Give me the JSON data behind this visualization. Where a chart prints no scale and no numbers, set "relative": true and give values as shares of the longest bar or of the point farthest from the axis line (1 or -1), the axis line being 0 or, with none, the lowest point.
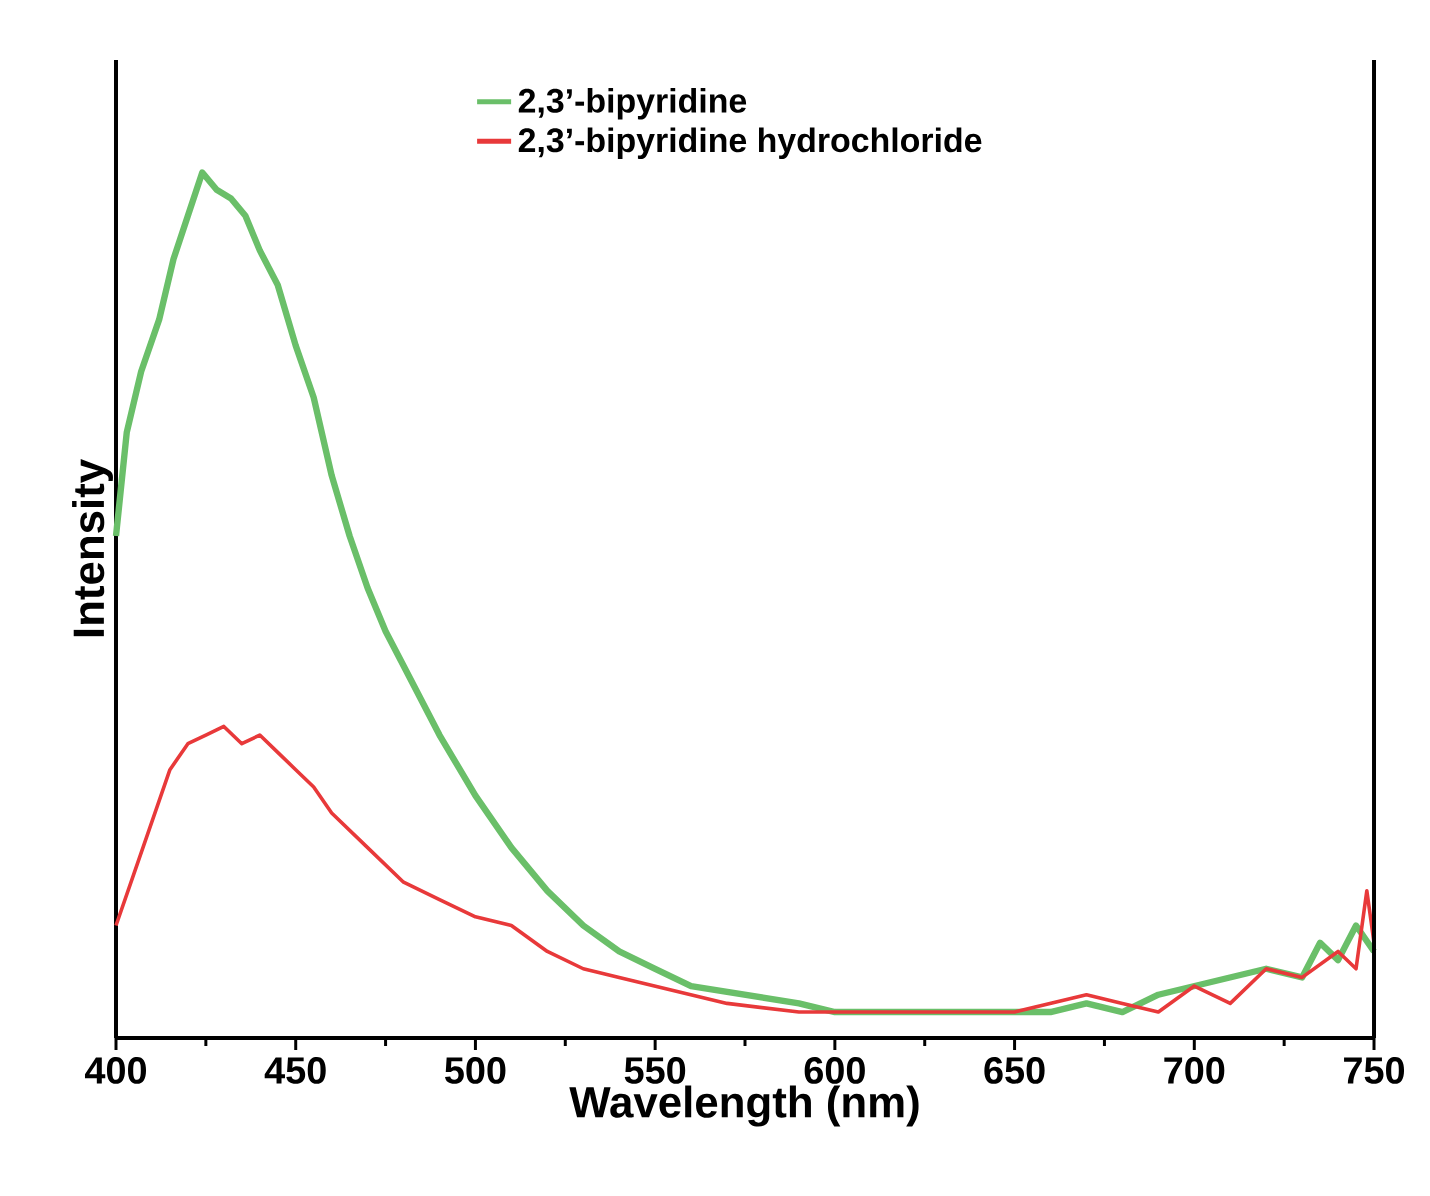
{
  "chart_data": {
    "type": "line",
    "xlabel": "Wavelength (nm)",
    "ylabel": "Intensity",
    "relative": true,
    "xlim": [
      400,
      750
    ],
    "xticks": [
      400,
      450,
      500,
      550,
      600,
      650,
      700,
      750
    ],
    "legend": "top",
    "line_style": "solid",
    "marker": "none",
    "grid": false,
    "series": [
      {
        "name": "2,3’-bipyridine",
        "color": "#6abf69",
        "x": [
          400,
          403,
          407,
          412,
          416,
          420,
          424,
          428,
          432,
          436,
          440,
          445,
          450,
          455,
          460,
          465,
          470,
          475,
          480,
          490,
          500,
          510,
          520,
          530,
          540,
          550,
          560,
          575,
          590,
          600,
          620,
          640,
          660,
          670,
          680,
          690,
          700,
          710,
          720,
          730,
          735,
          740,
          745,
          750
        ],
        "values": [
          0.58,
          0.7,
          0.77,
          0.83,
          0.9,
          0.95,
          1.0,
          0.98,
          0.97,
          0.95,
          0.91,
          0.87,
          0.8,
          0.74,
          0.65,
          0.58,
          0.52,
          0.47,
          0.43,
          0.35,
          0.28,
          0.22,
          0.17,
          0.13,
          0.1,
          0.08,
          0.06,
          0.05,
          0.04,
          0.03,
          0.03,
          0.03,
          0.03,
          0.04,
          0.03,
          0.05,
          0.06,
          0.07,
          0.08,
          0.07,
          0.11,
          0.09,
          0.13,
          0.1
        ]
      },
      {
        "name": "2,3’-bipyridine hydrochloride",
        "color": "#e8393a",
        "x": [
          400,
          405,
          410,
          415,
          420,
          425,
          430,
          435,
          440,
          445,
          450,
          455,
          460,
          470,
          480,
          490,
          500,
          510,
          520,
          530,
          540,
          550,
          570,
          590,
          610,
          630,
          650,
          660,
          670,
          680,
          690,
          700,
          710,
          720,
          730,
          740,
          745,
          748,
          750
        ],
        "values": [
          0.13,
          0.19,
          0.25,
          0.31,
          0.34,
          0.35,
          0.36,
          0.34,
          0.35,
          0.33,
          0.31,
          0.29,
          0.26,
          0.22,
          0.18,
          0.16,
          0.14,
          0.13,
          0.1,
          0.08,
          0.07,
          0.06,
          0.04,
          0.03,
          0.03,
          0.03,
          0.03,
          0.04,
          0.05,
          0.04,
          0.03,
          0.06,
          0.04,
          0.08,
          0.07,
          0.1,
          0.08,
          0.17,
          0.11
        ]
      }
    ]
  }
}
